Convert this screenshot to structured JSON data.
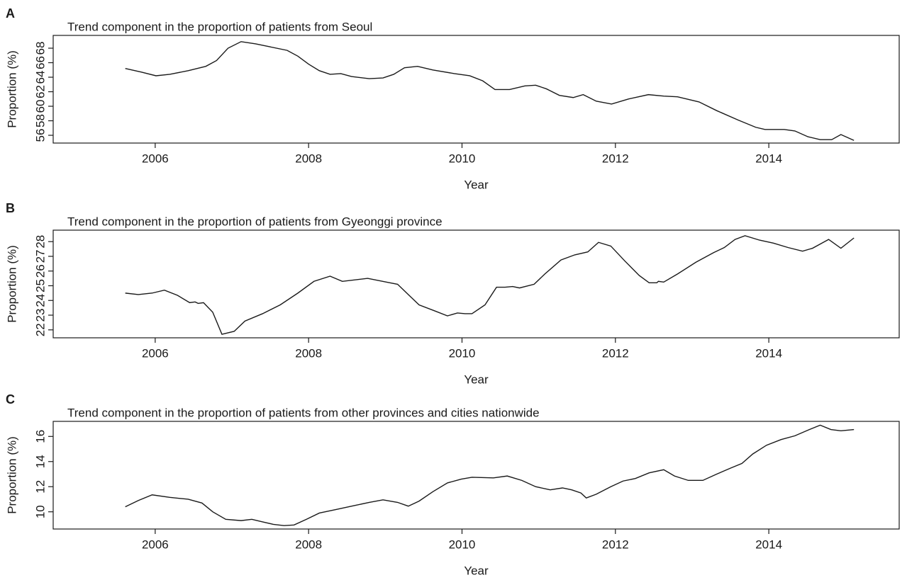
{
  "chart_data": [
    {
      "type": "line",
      "panel_label": "A",
      "title": "Trend component in the proportion of patients from Seoul",
      "xlabel": "Year",
      "ylabel": "Proportion (%)",
      "color": "#1a1a1a",
      "xlim": [
        2004.67,
        2015.7
      ],
      "xticks": [
        2006,
        2008,
        2010,
        2012,
        2014
      ],
      "ylim": [
        54.93,
        69.76
      ],
      "yticks": [
        56,
        58,
        60,
        62,
        64,
        66,
        68
      ],
      "x": [
        2005.61,
        2005.82,
        2006.01,
        2006.19,
        2006.43,
        2006.66,
        2006.8,
        2006.95,
        2007.12,
        2007.31,
        2007.49,
        2007.72,
        2007.86,
        2008.0,
        2008.14,
        2008.28,
        2008.42,
        2008.56,
        2008.79,
        2008.97,
        2009.11,
        2009.25,
        2009.42,
        2009.62,
        2009.9,
        2010.1,
        2010.27,
        2010.43,
        2010.62,
        2010.82,
        2010.96,
        2011.1,
        2011.27,
        2011.45,
        2011.58,
        2011.75,
        2011.95,
        2012.17,
        2012.43,
        2012.63,
        2012.81,
        2013.09,
        2013.32,
        2013.6,
        2013.83,
        2013.95,
        2014.2,
        2014.34,
        2014.51,
        2014.67,
        2014.82,
        2014.94,
        2015.11
      ],
      "values": [
        65.2,
        64.7,
        64.2,
        64.4,
        64.9,
        65.5,
        66.3,
        68.0,
        68.9,
        68.6,
        68.2,
        67.7,
        66.9,
        65.8,
        64.9,
        64.4,
        64.5,
        64.1,
        63.8,
        63.9,
        64.4,
        65.3,
        65.5,
        65.0,
        64.5,
        64.2,
        63.5,
        62.3,
        62.3,
        62.8,
        62.9,
        62.4,
        61.5,
        61.2,
        61.6,
        60.7,
        60.3,
        61.0,
        61.6,
        61.4,
        61.3,
        60.6,
        59.4,
        58.1,
        57.1,
        56.8,
        56.8,
        56.6,
        55.8,
        55.4,
        55.4,
        56.1,
        55.3
      ]
    },
    {
      "type": "line",
      "panel_label": "B",
      "title": "Trend component in the proportion of patients from Gyeonggi province",
      "xlabel": "Year",
      "ylabel": "Proportion (%)",
      "color": "#1a1a1a",
      "xlim": [
        2004.67,
        2015.7
      ],
      "xticks": [
        2006,
        2008,
        2010,
        2012,
        2014
      ],
      "ylim": [
        21.46,
        28.78
      ],
      "yticks": [
        22,
        23,
        24,
        25,
        26,
        27,
        28
      ],
      "x": [
        2005.61,
        2005.78,
        2005.96,
        2006.12,
        2006.29,
        2006.45,
        2006.52,
        2006.56,
        2006.63,
        2006.75,
        2006.87,
        2007.03,
        2007.17,
        2007.4,
        2007.63,
        2007.86,
        2008.07,
        2008.28,
        2008.44,
        2008.77,
        2009.06,
        2009.16,
        2009.44,
        2009.64,
        2009.81,
        2009.94,
        2010.04,
        2010.13,
        2010.3,
        2010.45,
        2010.56,
        2010.66,
        2010.75,
        2010.94,
        2011.08,
        2011.29,
        2011.47,
        2011.64,
        2011.78,
        2011.94,
        2012.12,
        2012.31,
        2012.44,
        2012.54,
        2012.56,
        2012.63,
        2012.81,
        2013.05,
        2013.28,
        2013.42,
        2013.56,
        2013.69,
        2013.88,
        2014.06,
        2014.25,
        2014.44,
        2014.57,
        2014.71,
        2014.78,
        2014.94,
        2015.11
      ],
      "values": [
        24.5,
        24.4,
        24.5,
        24.7,
        24.35,
        23.85,
        23.9,
        23.8,
        23.85,
        23.2,
        21.7,
        21.9,
        22.6,
        23.1,
        23.7,
        24.5,
        25.3,
        25.65,
        25.3,
        25.5,
        25.2,
        25.1,
        23.7,
        23.3,
        22.95,
        23.15,
        23.1,
        23.1,
        23.7,
        24.9,
        24.9,
        24.95,
        24.85,
        25.1,
        25.8,
        26.75,
        27.1,
        27.3,
        27.95,
        27.7,
        26.7,
        25.7,
        25.2,
        25.2,
        25.3,
        25.25,
        25.8,
        26.6,
        27.25,
        27.6,
        28.15,
        28.4,
        28.1,
        27.9,
        27.6,
        27.35,
        27.55,
        27.95,
        28.15,
        27.55,
        28.25
      ]
    },
    {
      "type": "line",
      "panel_label": "C",
      "title": "Trend component in the proportion of patients from other provinces and cities nationwide",
      "xlabel": "Year",
      "ylabel": "Proportion (%)",
      "color": "#1a1a1a",
      "xlim": [
        2004.67,
        2015.7
      ],
      "xticks": [
        2006,
        2008,
        2010,
        2012,
        2014
      ],
      "ylim": [
        8.63,
        17.2
      ],
      "yticks": [
        10,
        12,
        14,
        16
      ],
      "x": [
        2005.61,
        2005.78,
        2005.96,
        2006.19,
        2006.43,
        2006.61,
        2006.75,
        2006.92,
        2007.12,
        2007.26,
        2007.4,
        2007.54,
        2007.68,
        2007.81,
        2007.97,
        2008.14,
        2008.37,
        2008.6,
        2008.79,
        2008.97,
        2009.16,
        2009.3,
        2009.44,
        2009.62,
        2009.81,
        2009.99,
        2010.13,
        2010.41,
        2010.59,
        2010.78,
        2010.96,
        2011.15,
        2011.31,
        2011.43,
        2011.55,
        2011.62,
        2011.75,
        2011.94,
        2012.1,
        2012.26,
        2012.44,
        2012.63,
        2012.77,
        2012.95,
        2013.14,
        2013.32,
        2013.51,
        2013.65,
        2013.79,
        2013.97,
        2014.16,
        2014.34,
        2014.53,
        2014.67,
        2014.81,
        2014.94,
        2015.11
      ],
      "values": [
        10.4,
        10.9,
        11.35,
        11.15,
        11.0,
        10.7,
        10.0,
        9.4,
        9.3,
        9.4,
        9.2,
        9.0,
        8.9,
        8.95,
        9.4,
        9.9,
        10.2,
        10.5,
        10.75,
        10.95,
        10.75,
        10.45,
        10.85,
        11.6,
        12.3,
        12.6,
        12.75,
        12.7,
        12.85,
        12.5,
        12.0,
        11.75,
        11.9,
        11.75,
        11.5,
        11.1,
        11.4,
        12.0,
        12.45,
        12.65,
        13.1,
        13.35,
        12.85,
        12.5,
        12.5,
        13.0,
        13.5,
        13.85,
        14.6,
        15.3,
        15.75,
        16.05,
        16.55,
        16.9,
        16.55,
        16.45,
        16.55
      ]
    }
  ]
}
